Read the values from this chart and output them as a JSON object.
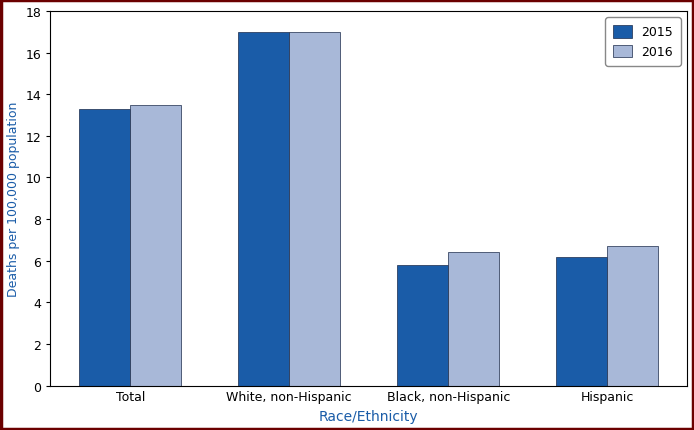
{
  "categories": [
    "Total",
    "White, non-Hispanic",
    "Black, non-Hispanic",
    "Hispanic"
  ],
  "values_2015": [
    13.3,
    17.0,
    5.8,
    6.2
  ],
  "values_2016": [
    13.5,
    17.0,
    6.4,
    6.7
  ],
  "color_2015": "#1a5ca8",
  "color_2016": "#a8b8d8",
  "bar_edge_color": "#1a2a4a",
  "ylabel": "Deaths per 100,000 population",
  "xlabel": "Race/Ethnicity",
  "ylabel_color": "#1a5ca8",
  "xlabel_color": "#1a5ca8",
  "tick_color": "#000000",
  "ylim": [
    0,
    18
  ],
  "yticks": [
    0,
    2,
    4,
    6,
    8,
    10,
    12,
    14,
    16,
    18
  ],
  "legend_labels": [
    "2015",
    "2016"
  ],
  "bar_width": 0.32,
  "spine_color": "#000000",
  "outer_border_color": "#6b0000",
  "background_color": "#ffffff"
}
